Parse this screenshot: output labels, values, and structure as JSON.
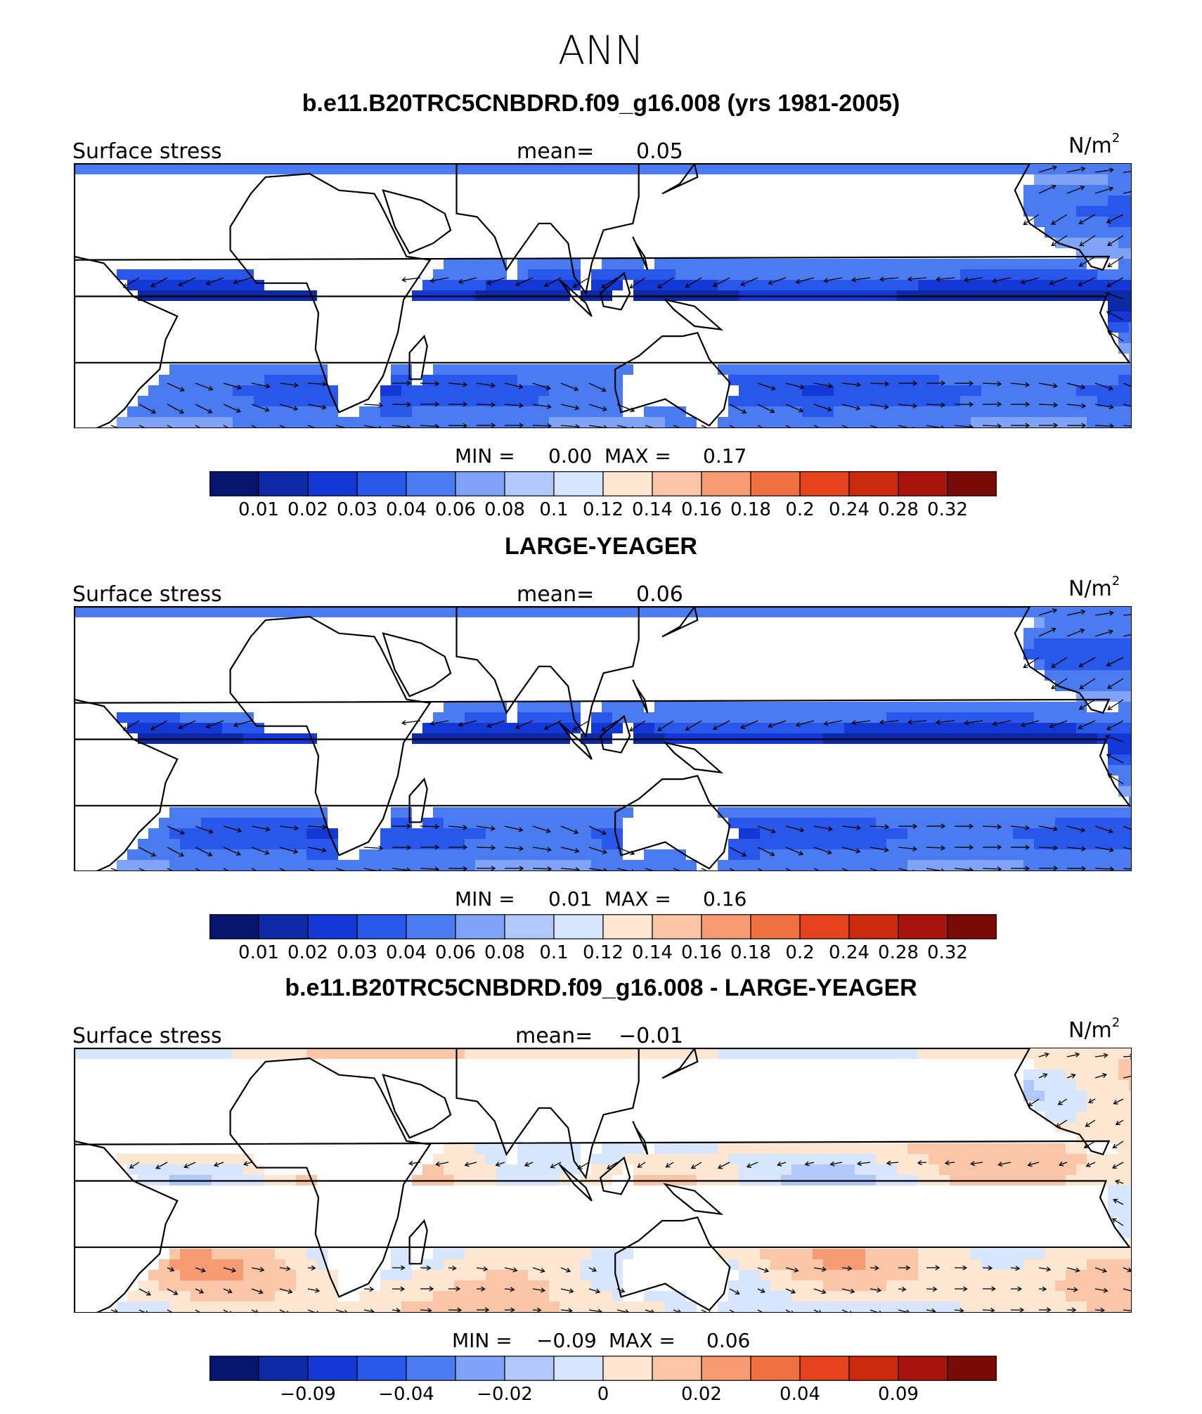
{
  "title": "ANN",
  "panels": [
    {
      "subtitle": "b.e11.B20TRC5CNBDRD.f09_g16.008 (yrs 1981-2005)",
      "left_label": "Surface stress",
      "mean_label": "mean=",
      "mean_value": "0.05",
      "units": "N/m",
      "units_exp": "2",
      "min_label": "MIN =",
      "min_value": "0.00",
      "max_label": "MAX =",
      "max_value": "0.17"
    },
    {
      "subtitle": "LARGE-YEAGER",
      "left_label": "Surface stress",
      "mean_label": "mean=",
      "mean_value": "0.06",
      "units": "N/m",
      "units_exp": "2",
      "min_label": "MIN =",
      "min_value": "0.01",
      "max_label": "MAX =",
      "max_value": "0.16"
    },
    {
      "subtitle": "b.e11.B20TRC5CNBDRD.f09_g16.008 - LARGE-YEAGER",
      "left_label": "Surface stress",
      "mean_label": "mean=",
      "mean_value": "−0.01",
      "units": "N/m",
      "units_exp": "2",
      "min_label": "MIN =",
      "min_value": "−0.09",
      "max_label": "MAX =",
      "max_value": "0.06"
    }
  ],
  "colorbar_colors": [
    "#08156e",
    "#0c2aa5",
    "#1338d6",
    "#2a57eb",
    "#4a7bf0",
    "#7fa3f6",
    "#b0c7fa",
    "#d8e6fd",
    "#fde6d2",
    "#fbc6a8",
    "#f79c72",
    "#f1703f",
    "#e5431c",
    "#cc2a0c",
    "#a8150a",
    "#7a0a06"
  ],
  "colorbar_ticks_abs": [
    "0.01",
    "0.02",
    "0.03",
    "0.04",
    "0.06",
    "0.08",
    "0.1",
    "0.12",
    "0.14",
    "0.16",
    "0.18",
    "0.2",
    "0.24",
    "0.28",
    "0.32"
  ],
  "colorbar_ticks_diff": [
    "−0.09",
    "−0.04",
    "−0.02",
    "0",
    "0.02",
    "0.04",
    "0.09"
  ],
  "chart_data": [
    {
      "type": "heatmap",
      "title": "b.e11.B20TRC5CNBDRD.f09_g16.008 (yrs 1981-2005)",
      "variable": "Surface stress",
      "units": "N/m^2",
      "mean": 0.05,
      "min": 0.0,
      "max": 0.17,
      "levels": [
        0.01,
        0.02,
        0.03,
        0.04,
        0.06,
        0.08,
        0.1,
        0.12,
        0.14,
        0.16,
        0.18,
        0.2,
        0.24,
        0.28,
        0.32
      ],
      "overlay": "vectors"
    },
    {
      "type": "heatmap",
      "title": "LARGE-YEAGER",
      "variable": "Surface stress",
      "units": "N/m^2",
      "mean": 0.06,
      "min": 0.01,
      "max": 0.16,
      "levels": [
        0.01,
        0.02,
        0.03,
        0.04,
        0.06,
        0.08,
        0.1,
        0.12,
        0.14,
        0.16,
        0.18,
        0.2,
        0.24,
        0.28,
        0.32
      ],
      "overlay": "vectors"
    },
    {
      "type": "heatmap",
      "title": "b.e11.B20TRC5CNBDRD.f09_g16.008 - LARGE-YEAGER",
      "variable": "Surface stress",
      "units": "N/m^2",
      "mean": -0.01,
      "min": -0.09,
      "max": 0.06,
      "levels_labeled": [
        -0.09,
        -0.04,
        -0.02,
        0,
        0.02,
        0.04,
        0.09
      ],
      "overlay": "vectors"
    }
  ]
}
